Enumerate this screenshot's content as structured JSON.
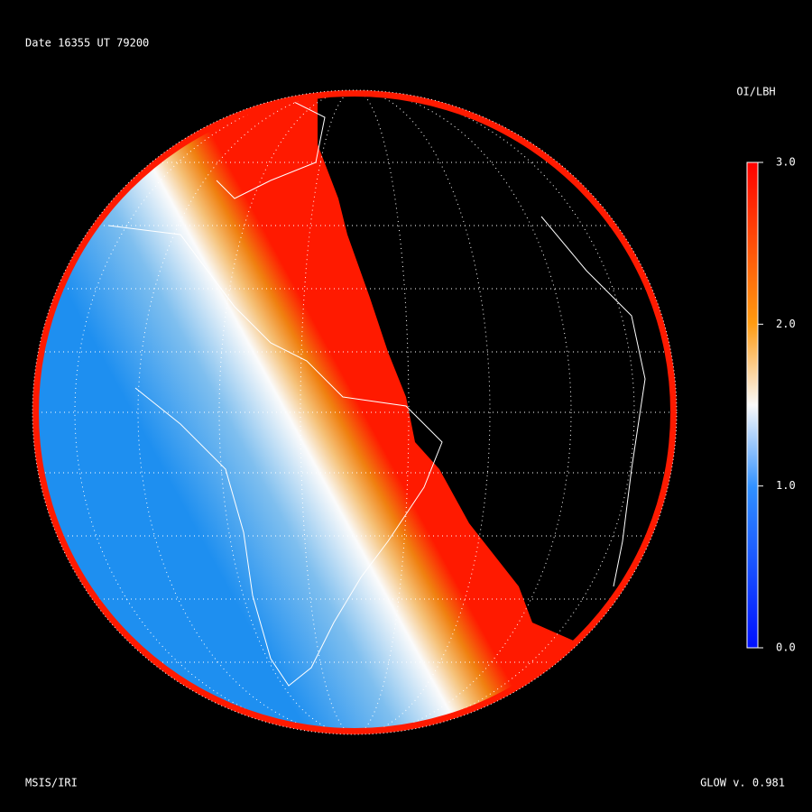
{
  "header": {
    "date_line": "Date 16355  UT 79200"
  },
  "colorbar": {
    "title": "OI/LBH",
    "lim": [
      0,
      3
    ],
    "ticks": [
      {
        "value": 0,
        "label": "0.0"
      },
      {
        "value": 1,
        "label": "1.0"
      },
      {
        "value": 2,
        "label": "2.0"
      },
      {
        "value": 3,
        "label": "3.0"
      }
    ]
  },
  "footer": {
    "left": "MSIS/IRI",
    "right": "GLOW v. 0.981"
  }
}
